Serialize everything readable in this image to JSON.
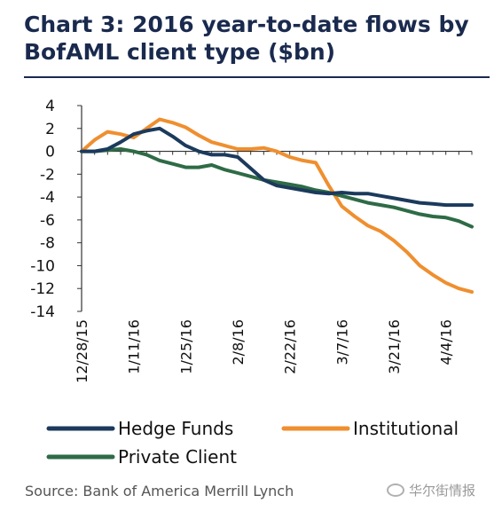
{
  "title_line1": "Chart 3: 2016 year-to-date flows by",
  "title_line2": "BofAML client type ($bn)",
  "source": "Source: Bank of America Merrill Lynch",
  "watermark": "华尔街情报",
  "chart_data": {
    "type": "line",
    "title": "Chart 3: 2016 year-to-date flows by BofAML client type ($bn)",
    "xlabel": "",
    "ylabel": "",
    "ylim": [
      -14,
      4
    ],
    "yticks": [
      4,
      2,
      0,
      -2,
      -4,
      -6,
      -8,
      -10,
      -12,
      -14
    ],
    "x": [
      "12/28/15",
      "12/31/15",
      "1/4/16",
      "1/7/16",
      "1/11/16",
      "1/14/16",
      "1/18/16",
      "1/21/16",
      "1/25/16",
      "1/28/16",
      "2/1/16",
      "2/4/16",
      "2/8/16",
      "2/11/16",
      "2/15/16",
      "2/18/16",
      "2/22/16",
      "2/25/16",
      "2/29/16",
      "3/3/16",
      "3/7/16",
      "3/10/16",
      "3/14/16",
      "3/17/16",
      "3/21/16",
      "3/24/16",
      "3/28/16",
      "3/31/16",
      "4/4/16",
      "4/7/16",
      "4/11/16"
    ],
    "xticks": [
      "12/28/15",
      "1/11/16",
      "1/25/16",
      "2/8/16",
      "2/22/16",
      "3/7/16",
      "3/21/16",
      "4/4/16"
    ],
    "legend_placement": "bottom",
    "series": [
      {
        "name": "Hedge Funds",
        "color": "#1b3a5c",
        "values": [
          0,
          0,
          0.2,
          0.8,
          1.5,
          1.8,
          2.0,
          1.3,
          0.5,
          0,
          -0.3,
          -0.3,
          -0.5,
          -1.5,
          -2.5,
          -3.0,
          -3.2,
          -3.4,
          -3.6,
          -3.7,
          -3.6,
          -3.7,
          -3.7,
          -3.9,
          -4.1,
          -4.3,
          -4.5,
          -4.6,
          -4.7,
          -4.7,
          -4.7
        ]
      },
      {
        "name": "Institutional",
        "color": "#ef8f2f",
        "values": [
          0,
          1.0,
          1.7,
          1.5,
          1.2,
          2.0,
          2.8,
          2.5,
          2.1,
          1.4,
          0.8,
          0.5,
          0.2,
          0.2,
          0.3,
          0,
          -0.5,
          -0.8,
          -1.0,
          -3.0,
          -4.8,
          -5.7,
          -6.5,
          -7.0,
          -7.8,
          -8.8,
          -10.0,
          -10.8,
          -11.5,
          -12.0,
          -12.3
        ]
      },
      {
        "name": "Private Client",
        "color": "#2e6b46",
        "values": [
          0,
          0,
          0.1,
          0.2,
          0,
          -0.3,
          -0.8,
          -1.1,
          -1.4,
          -1.4,
          -1.2,
          -1.6,
          -1.9,
          -2.2,
          -2.5,
          -2.7,
          -2.9,
          -3.1,
          -3.4,
          -3.6,
          -3.9,
          -4.2,
          -4.5,
          -4.7,
          -4.9,
          -5.2,
          -5.5,
          -5.7,
          -5.8,
          -6.1,
          -6.6
        ]
      }
    ]
  }
}
